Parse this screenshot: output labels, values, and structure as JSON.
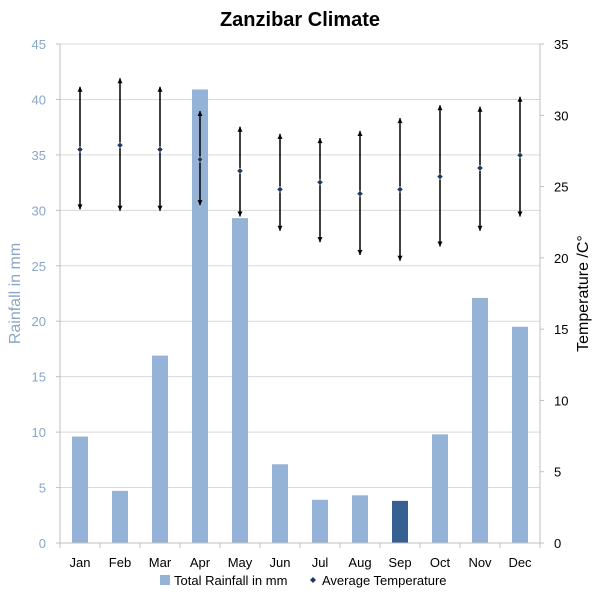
{
  "chart_data": {
    "type": "bar",
    "title": "Zanzibar Climate",
    "categories": [
      "Jan",
      "Feb",
      "Mar",
      "Apr",
      "May",
      "Jun",
      "Jul",
      "Aug",
      "Sep",
      "Oct",
      "Nov",
      "Dec"
    ],
    "series": [
      {
        "name": "Total Rainfall in mm",
        "axis": "left",
        "kind": "bar",
        "color": "#95b3d7",
        "highlight_color": "#376092",
        "highlight_category": "Sep",
        "values": [
          9.6,
          4.7,
          16.9,
          40.9,
          29.3,
          7.1,
          3.9,
          4.3,
          3.8,
          9.8,
          22.1,
          19.5
        ]
      },
      {
        "name": "Average Temperature",
        "axis": "right",
        "kind": "point-with-range",
        "color": "#1f3864",
        "values": [
          27.6,
          27.9,
          27.6,
          26.9,
          26.1,
          24.8,
          25.3,
          24.5,
          24.8,
          25.7,
          26.3,
          27.2
        ],
        "high": [
          32.0,
          32.6,
          32.0,
          30.3,
          29.2,
          28.7,
          28.4,
          28.9,
          29.8,
          30.7,
          30.6,
          31.3
        ],
        "low": [
          23.4,
          23.3,
          23.3,
          23.7,
          22.9,
          21.9,
          21.1,
          20.2,
          19.8,
          20.8,
          21.9,
          22.9
        ]
      }
    ],
    "ylabel": "Rainfall in mm",
    "ylim": [
      0,
      45
    ],
    "yticks": [
      0,
      5,
      10,
      15,
      20,
      25,
      30,
      35,
      40,
      45
    ],
    "y2label": "Temperature /C°",
    "y2lim": [
      0,
      35
    ],
    "y2ticks": [
      0,
      5,
      10,
      15,
      20,
      25,
      30,
      35
    ],
    "grid": true,
    "legend_position": "bottom"
  }
}
